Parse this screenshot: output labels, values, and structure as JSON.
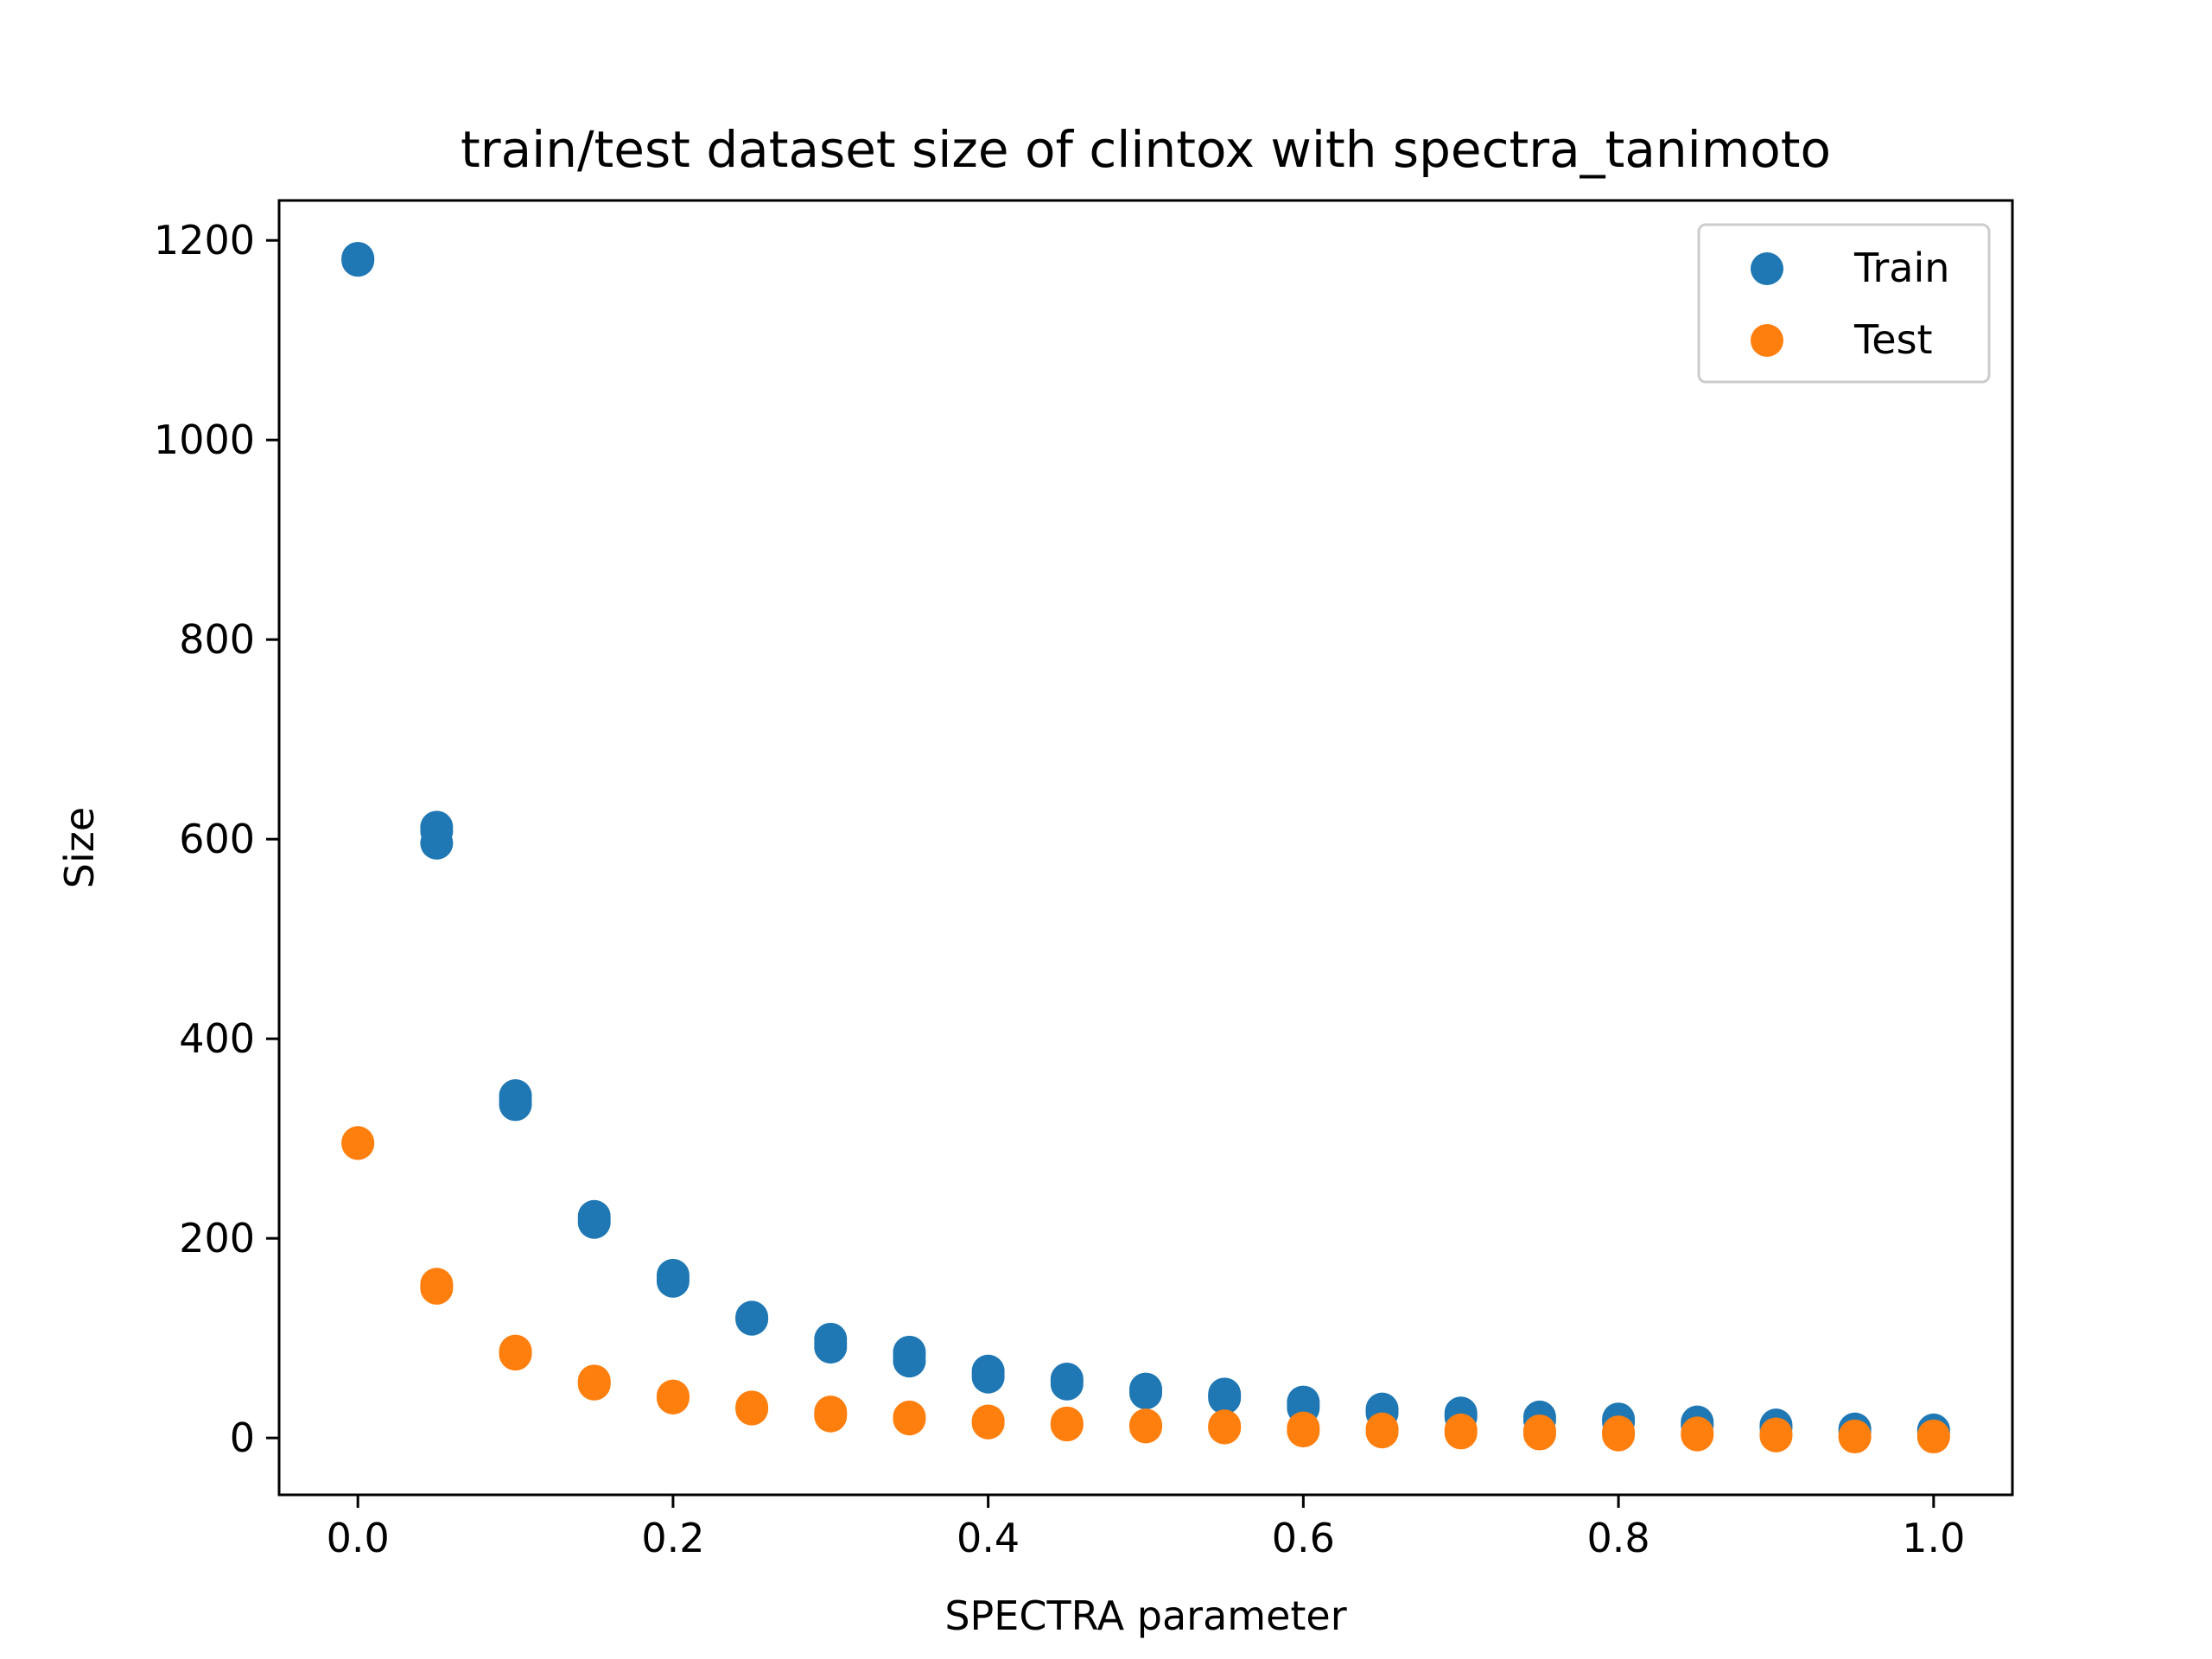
{
  "chart_data": {
    "type": "scatter",
    "title": "train/test dataset size of clintox with spectra_tanimoto",
    "xlabel": "SPECTRA parameter",
    "ylabel": "Size",
    "xlim": [
      -0.05,
      1.05
    ],
    "ylim": [
      -57,
      1240
    ],
    "xticks": [
      0.0,
      0.2,
      0.4,
      0.6,
      0.8,
      1.0
    ],
    "xtick_labels": [
      "0.0",
      "0.2",
      "0.4",
      "0.6",
      "0.8",
      "1.0"
    ],
    "yticks": [
      0,
      200,
      400,
      600,
      800,
      1000,
      1200
    ],
    "ytick_labels": [
      "0",
      "200",
      "400",
      "600",
      "800",
      "1000",
      "1200"
    ],
    "grid": false,
    "legend_position": "top-right",
    "series": [
      {
        "name": "Train",
        "color": "#1f77b4",
        "points": [
          [
            0.0,
            1180
          ],
          [
            0.0,
            1182
          ],
          [
            0.0,
            1181
          ],
          [
            0.05,
            612
          ],
          [
            0.05,
            596
          ],
          [
            0.05,
            608
          ],
          [
            0.1,
            343
          ],
          [
            0.1,
            334
          ],
          [
            0.1,
            338
          ],
          [
            0.15,
            222
          ],
          [
            0.15,
            216
          ],
          [
            0.15,
            219
          ],
          [
            0.2,
            163
          ],
          [
            0.2,
            157
          ],
          [
            0.2,
            160
          ],
          [
            0.25,
            121
          ],
          [
            0.25,
            119
          ],
          [
            0.3,
            99
          ],
          [
            0.3,
            91
          ],
          [
            0.3,
            95
          ],
          [
            0.35,
            86
          ],
          [
            0.35,
            77
          ],
          [
            0.35,
            82
          ],
          [
            0.4,
            67
          ],
          [
            0.4,
            61
          ],
          [
            0.4,
            64
          ],
          [
            0.45,
            59
          ],
          [
            0.45,
            54
          ],
          [
            0.45,
            57
          ],
          [
            0.5,
            49
          ],
          [
            0.5,
            45
          ],
          [
            0.5,
            47
          ],
          [
            0.55,
            44
          ],
          [
            0.55,
            40
          ],
          [
            0.55,
            42
          ],
          [
            0.6,
            36
          ],
          [
            0.6,
            30
          ],
          [
            0.6,
            33
          ],
          [
            0.65,
            29
          ],
          [
            0.65,
            25
          ],
          [
            0.65,
            27
          ],
          [
            0.7,
            25
          ],
          [
            0.7,
            21
          ],
          [
            0.7,
            23
          ],
          [
            0.75,
            21
          ],
          [
            0.75,
            18
          ],
          [
            0.8,
            19
          ],
          [
            0.8,
            16
          ],
          [
            0.85,
            16
          ],
          [
            0.85,
            13
          ],
          [
            0.9,
            13
          ],
          [
            0.9,
            10
          ],
          [
            0.95,
            9
          ],
          [
            0.95,
            6
          ],
          [
            1.0,
            8
          ],
          [
            1.0,
            5
          ]
        ]
      },
      {
        "name": "Test",
        "color": "#ff7f0e",
        "points": [
          [
            0.0,
            296
          ],
          [
            0.0,
            295
          ],
          [
            0.05,
            154
          ],
          [
            0.05,
            150
          ],
          [
            0.05,
            152
          ],
          [
            0.1,
            87
          ],
          [
            0.1,
            84
          ],
          [
            0.1,
            86
          ],
          [
            0.15,
            57
          ],
          [
            0.15,
            54
          ],
          [
            0.15,
            56
          ],
          [
            0.2,
            42
          ],
          [
            0.2,
            40
          ],
          [
            0.2,
            41
          ],
          [
            0.25,
            31
          ],
          [
            0.25,
            29
          ],
          [
            0.3,
            26
          ],
          [
            0.3,
            22
          ],
          [
            0.3,
            24
          ],
          [
            0.35,
            21
          ],
          [
            0.35,
            19
          ],
          [
            0.4,
            17
          ],
          [
            0.4,
            15
          ],
          [
            0.45,
            15
          ],
          [
            0.45,
            13
          ],
          [
            0.5,
            13
          ],
          [
            0.5,
            11
          ],
          [
            0.55,
            12
          ],
          [
            0.55,
            10
          ],
          [
            0.6,
            10
          ],
          [
            0.6,
            7
          ],
          [
            0.65,
            9
          ],
          [
            0.65,
            6
          ],
          [
            0.7,
            8
          ],
          [
            0.7,
            5
          ],
          [
            0.75,
            7
          ],
          [
            0.75,
            4
          ],
          [
            0.8,
            6
          ],
          [
            0.8,
            3
          ],
          [
            0.85,
            5
          ],
          [
            0.85,
            3
          ],
          [
            0.9,
            4
          ],
          [
            0.9,
            2
          ],
          [
            0.95,
            2
          ],
          [
            0.95,
            1
          ],
          [
            1.0,
            2
          ],
          [
            1.0,
            1
          ]
        ]
      }
    ]
  }
}
